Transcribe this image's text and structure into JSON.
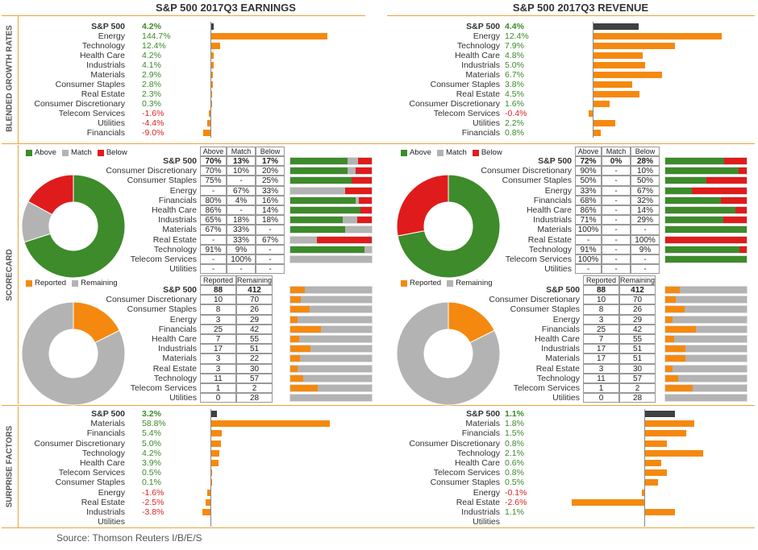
{
  "titles": {
    "earnings": "S&P 500 2017Q3 EARNINGS",
    "revenue": "S&P 500 2017Q3 REVENUE"
  },
  "side_labels": {
    "growth": "BLENDED GROWTH RATES",
    "scorecard": "SCORECARD",
    "surprise": "SURPRISE FACTORS"
  },
  "legend": {
    "above": "Above",
    "match": "Match",
    "below": "Below",
    "reported": "Reported",
    "remaining": "Remaining"
  },
  "table_headers": {
    "above": "Above",
    "match": "Match",
    "below": "Below",
    "reported": "Reported",
    "remaining": "Remaining"
  },
  "source": "Source: Thomson Reuters I/B/E/S",
  "colors": {
    "orange": "#f5890f",
    "dark": "#404040",
    "green": "#3d8b2a",
    "gray": "#b3b3b3",
    "red": "#e01b1b",
    "accent": "#e8a33d"
  },
  "chart_data": [
    {
      "type": "bar",
      "id": "earnings_growth",
      "categories": [
        "S&P 500",
        "Energy",
        "Technology",
        "Health Care",
        "Industrials",
        "Materials",
        "Consumer Staples",
        "Real Estate",
        "Consumer Discretionary",
        "Telecom Services",
        "Utilities",
        "Financials"
      ],
      "labels": [
        "4.2%",
        "144.7%",
        "12.4%",
        "4.2%",
        "4.1%",
        "2.9%",
        "2.8%",
        "2.3%",
        "0.3%",
        "-1.6%",
        "-4.4%",
        "-9.0%"
      ],
      "values": [
        4.2,
        144.7,
        12.4,
        4.2,
        4.1,
        2.9,
        2.8,
        2.3,
        0.3,
        -1.6,
        -4.4,
        -9.0
      ]
    },
    {
      "type": "bar",
      "id": "revenue_growth",
      "categories": [
        "S&P 500",
        "Energy",
        "Technology",
        "Health Care",
        "Industrials",
        "Materials",
        "Consumer Staples",
        "Real Estate",
        "Consumer Discretionary",
        "Telecom Services",
        "Utilities",
        "Financials"
      ],
      "labels": [
        "4.4%",
        "12.4%",
        "7.9%",
        "4.8%",
        "5.0%",
        "6.7%",
        "3.8%",
        "4.5%",
        "1.6%",
        "-0.4%",
        "2.2%",
        "0.8%"
      ],
      "values": [
        4.4,
        12.4,
        7.9,
        4.8,
        5.0,
        6.7,
        3.8,
        4.5,
        1.6,
        -0.4,
        2.2,
        0.8
      ]
    },
    {
      "type": "table",
      "id": "earnings_scorecard",
      "categories": [
        "S&P 500",
        "Consumer Discretionary",
        "Consumer Staples",
        "Energy",
        "Financials",
        "Health Care",
        "Industrials",
        "Materials",
        "Real Estate",
        "Technology",
        "Telecom Services",
        "Utilities"
      ],
      "above": [
        "70%",
        "70%",
        "75%",
        "-",
        "80%",
        "86%",
        "65%",
        "67%",
        "-",
        "91%",
        "-",
        "-"
      ],
      "match": [
        "13%",
        "10%",
        "-",
        "67%",
        "4%",
        "-",
        "18%",
        "33%",
        "33%",
        "9%",
        "100%",
        "-"
      ],
      "below": [
        "17%",
        "20%",
        "25%",
        "33%",
        "16%",
        "14%",
        "18%",
        "-",
        "67%",
        "-",
        "-",
        "-"
      ],
      "above_v": [
        70,
        70,
        75,
        0,
        80,
        86,
        65,
        67,
        0,
        91,
        0,
        0
      ],
      "match_v": [
        13,
        10,
        0,
        67,
        4,
        0,
        18,
        33,
        33,
        9,
        100,
        0
      ],
      "below_v": [
        17,
        20,
        25,
        33,
        16,
        14,
        18,
        0,
        67,
        0,
        0,
        0
      ],
      "donut": {
        "Above": 70,
        "Match": 13,
        "Below": 17
      }
    },
    {
      "type": "table",
      "id": "revenue_scorecard",
      "categories": [
        "S&P 500",
        "Consumer Discretionary",
        "Consumer Staples",
        "Energy",
        "Financials",
        "Health Care",
        "Industrials",
        "Materials",
        "Real Estate",
        "Technology",
        "Telecom Services",
        "Utilities"
      ],
      "above": [
        "72%",
        "90%",
        "50%",
        "33%",
        "68%",
        "86%",
        "71%",
        "100%",
        "-",
        "91%",
        "100%",
        "-"
      ],
      "match": [
        "0%",
        "-",
        "-",
        "-",
        "-",
        "-",
        "-",
        "-",
        "-",
        "-",
        "-",
        "-"
      ],
      "below": [
        "28%",
        "10%",
        "50%",
        "67%",
        "32%",
        "14%",
        "29%",
        "-",
        "100%",
        "9%",
        "-",
        "-"
      ],
      "above_v": [
        72,
        90,
        50,
        33,
        68,
        86,
        71,
        100,
        0,
        91,
        100,
        0
      ],
      "match_v": [
        0,
        0,
        0,
        0,
        0,
        0,
        0,
        0,
        0,
        0,
        0,
        0
      ],
      "below_v": [
        28,
        10,
        50,
        67,
        32,
        14,
        29,
        0,
        100,
        9,
        0,
        0
      ],
      "donut": {
        "Above": 72,
        "Match": 0,
        "Below": 28
      }
    },
    {
      "type": "table",
      "id": "earnings_reported",
      "categories": [
        "S&P 500",
        "Consumer Discretionary",
        "Consumer Staples",
        "Energy",
        "Financials",
        "Health Care",
        "Industrials",
        "Materials",
        "Real Estate",
        "Technology",
        "Telecom Services",
        "Utilities"
      ],
      "reported": [
        88,
        10,
        8,
        3,
        25,
        7,
        17,
        3,
        3,
        11,
        1,
        0
      ],
      "remaining": [
        412,
        70,
        26,
        29,
        42,
        55,
        51,
        22,
        30,
        57,
        2,
        28
      ],
      "donut": {
        "Reported": 88,
        "Remaining": 412
      }
    },
    {
      "type": "table",
      "id": "revenue_reported",
      "categories": [
        "S&P 500",
        "Consumer Discretionary",
        "Consumer Staples",
        "Energy",
        "Financials",
        "Health Care",
        "Industrials",
        "Materials",
        "Real Estate",
        "Technology",
        "Telecom Services",
        "Utilities"
      ],
      "reported": [
        88,
        10,
        8,
        3,
        25,
        7,
        17,
        17,
        3,
        11,
        1,
        0
      ],
      "remaining": [
        412,
        70,
        26,
        29,
        42,
        55,
        51,
        51,
        30,
        57,
        2,
        28
      ],
      "donut": {
        "Reported": 88,
        "Remaining": 412
      }
    },
    {
      "type": "bar",
      "id": "earnings_surprise",
      "categories": [
        "S&P 500",
        "Materials",
        "Financials",
        "Consumer Discretionary",
        "Technology",
        "Health Care",
        "Telecom Services",
        "Consumer Staples",
        "Energy",
        "Real Estate",
        "Industrials",
        "Utilities"
      ],
      "labels": [
        "3.2%",
        "58.8%",
        "5.4%",
        "5.0%",
        "4.2%",
        "3.9%",
        "0.5%",
        "0.1%",
        "-1.6%",
        "-2.5%",
        "-3.8%",
        ""
      ],
      "values": [
        3.2,
        58.8,
        5.4,
        5.0,
        4.2,
        3.9,
        0.5,
        0.1,
        -1.6,
        -2.5,
        -3.8,
        null
      ]
    },
    {
      "type": "bar",
      "id": "revenue_surprise",
      "categories": [
        "S&P 500",
        "Materials",
        "Financials",
        "Consumer Discretionary",
        "Technology",
        "Health Care",
        "Telecom Services",
        "Consumer Staples",
        "Energy",
        "Real Estate",
        "Industrials",
        "Utilities"
      ],
      "labels": [
        "1.1%",
        "1.8%",
        "1.5%",
        "0.8%",
        "2.1%",
        "0.6%",
        "0.8%",
        "0.5%",
        "-0.1%",
        "-2.6%",
        "1.1%",
        ""
      ],
      "values": [
        1.1,
        1.8,
        1.5,
        0.8,
        2.1,
        0.6,
        0.8,
        0.5,
        -0.1,
        -2.6,
        1.1,
        null
      ]
    }
  ]
}
